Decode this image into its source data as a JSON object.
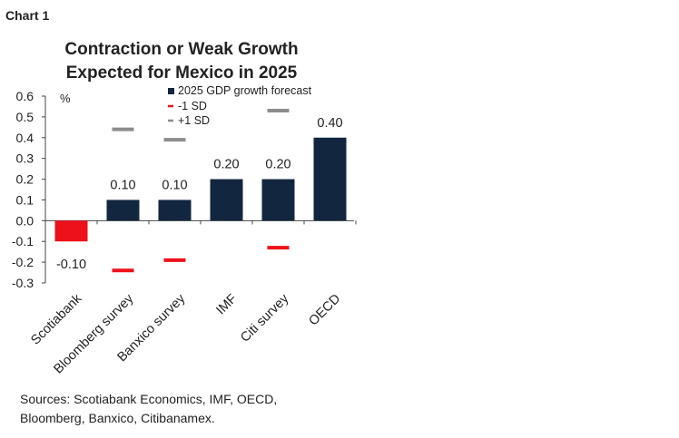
{
  "chart_number": "Chart 1",
  "chart_data": {
    "type": "bar",
    "title_line1": "Contraction or Weak Growth",
    "title_line2": "Expected for Mexico in 2025",
    "unit_label": "%",
    "categories": [
      "Scotiabank",
      "Bloomberg survey",
      "Banxico survey",
      "IMF",
      "Citi survey",
      "OECD"
    ],
    "series": [
      {
        "name": "2025 GDP growth forecast",
        "type": "bar",
        "values": [
          -0.1,
          0.1,
          0.1,
          0.2,
          0.2,
          0.4
        ]
      },
      {
        "name": "-1 SD",
        "type": "marker",
        "values": [
          null,
          -0.24,
          -0.19,
          null,
          -0.13,
          null
        ]
      },
      {
        "name": "+1 SD",
        "type": "marker",
        "values": [
          null,
          0.44,
          0.39,
          null,
          0.53,
          null
        ]
      }
    ],
    "data_labels": [
      "-0.10",
      "0.10",
      "0.10",
      "0.20",
      "0.20",
      "0.40"
    ],
    "ylim": [
      -0.3,
      0.6
    ],
    "yticks": [
      "0.6",
      "0.5",
      "0.4",
      "0.3",
      "0.2",
      "0.1",
      "0.0",
      "-0.1",
      "-0.2",
      "-0.3"
    ],
    "ytick_values": [
      0.6,
      0.5,
      0.4,
      0.3,
      0.2,
      0.1,
      0.0,
      -0.1,
      -0.2,
      -0.3
    ],
    "legend_position": "top",
    "grid": false,
    "colors": {
      "bar_positive": "#12263f",
      "bar_negative": "#ec111a",
      "minus_sd": "#ec111a",
      "plus_sd": "#8c8c8c",
      "axis": "#444444"
    }
  },
  "source_text_line1": "Sources: Scotiabank Economics, IMF, OECD,",
  "source_text_line2": "Bloomberg, Banxico, Citibanamex."
}
